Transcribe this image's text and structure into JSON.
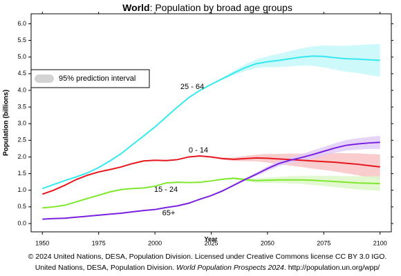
{
  "chart_data": {
    "type": "line",
    "title_bold": "World",
    "title": ": Population by broad age groups",
    "x_label": "Year",
    "y_label": "Population (billions)",
    "legend_label": "95% prediction interval",
    "legend_color": "#d3d3d3",
    "footer_line1": "© 2024 United Nations, DESA, Population Division. Licensed under Creative Commons license CC BY 3.0 IGO.",
    "footer_line2_start": "United Nations, DESA, Population Division. ",
    "footer_line2_italic": "World Population Prospects 2024",
    "footer_line2_end": ". http://population.un.org/wpp/",
    "xlim": [
      1945,
      2105
    ],
    "ylim": [
      -0.25,
      6.3
    ],
    "xticks": [
      1950,
      1975,
      2000,
      2025,
      2050,
      2075,
      2100
    ],
    "yticks": [
      {
        "value": 0,
        "label": "0.0"
      },
      {
        "value": 0.5,
        "label": "0.5"
      },
      {
        "value": 1,
        "label": "1.0"
      },
      {
        "value": 1.5,
        "label": "1.5"
      },
      {
        "value": 2,
        "label": "2.0"
      },
      {
        "value": 2.5,
        "label": "2.5"
      },
      {
        "value": 3,
        "label": "3.0"
      },
      {
        "value": 3.5,
        "label": "3.5"
      },
      {
        "value": 4,
        "label": "4.0"
      },
      {
        "value": 4.5,
        "label": "4.5"
      },
      {
        "value": 5,
        "label": "5.0"
      },
      {
        "value": 5.5,
        "label": "5.5"
      },
      {
        "value": 6,
        "label": "6.0"
      }
    ],
    "x": [
      1950,
      1955,
      1960,
      1965,
      1970,
      1975,
      1980,
      1985,
      1990,
      1995,
      2000,
      2005,
      2010,
      2015,
      2020,
      2025,
      2030,
      2035,
      2040,
      2045,
      2050,
      2055,
      2060,
      2065,
      2070,
      2075,
      2080,
      2085,
      2090,
      2095,
      2100
    ],
    "series": [
      {
        "name": "25 - 64",
        "color": "#33e8f0",
        "band_color": "#c4f8fa",
        "values": [
          1.05,
          1.17,
          1.29,
          1.4,
          1.52,
          1.68,
          1.88,
          2.1,
          2.37,
          2.63,
          2.9,
          3.2,
          3.5,
          3.78,
          4.0,
          4.18,
          4.35,
          4.52,
          4.68,
          4.8,
          4.86,
          4.9,
          4.95,
          5.0,
          5.03,
          5.02,
          4.98,
          4.95,
          4.94,
          4.92,
          4.9
        ],
        "lower": [
          null,
          null,
          null,
          null,
          null,
          null,
          null,
          null,
          null,
          null,
          null,
          null,
          null,
          null,
          null,
          4.18,
          4.32,
          4.45,
          4.58,
          4.67,
          4.7,
          4.7,
          4.72,
          4.74,
          4.74,
          4.69,
          4.62,
          4.56,
          4.52,
          4.46,
          4.41
        ],
        "upper": [
          null,
          null,
          null,
          null,
          null,
          null,
          null,
          null,
          null,
          null,
          null,
          null,
          null,
          null,
          null,
          4.18,
          4.38,
          4.59,
          4.78,
          4.93,
          5.02,
          5.1,
          5.18,
          5.26,
          5.32,
          5.35,
          5.34,
          5.34,
          5.36,
          5.38,
          5.39
        ]
      },
      {
        "name": "0 - 14",
        "color": "#e8141c",
        "band_color": "#f8c4c4",
        "values": [
          0.88,
          1.0,
          1.15,
          1.32,
          1.45,
          1.55,
          1.62,
          1.7,
          1.8,
          1.88,
          1.9,
          1.89,
          1.92,
          2.0,
          2.03,
          2.0,
          1.95,
          1.93,
          1.95,
          1.97,
          1.96,
          1.94,
          1.92,
          1.9,
          1.88,
          1.86,
          1.84,
          1.81,
          1.78,
          1.74,
          1.7
        ],
        "lower": [
          null,
          null,
          null,
          null,
          null,
          null,
          null,
          null,
          null,
          null,
          null,
          null,
          null,
          null,
          null,
          2.0,
          1.92,
          1.88,
          1.87,
          1.87,
          1.83,
          1.79,
          1.74,
          1.7,
          1.65,
          1.61,
          1.56,
          1.51,
          1.45,
          1.39,
          1.32
        ],
        "upper": [
          null,
          null,
          null,
          null,
          null,
          null,
          null,
          null,
          null,
          null,
          null,
          null,
          null,
          null,
          null,
          2.0,
          1.98,
          1.98,
          2.03,
          2.07,
          2.09,
          2.09,
          2.1,
          2.1,
          2.11,
          2.11,
          2.12,
          2.11,
          2.11,
          2.09,
          2.08
        ]
      },
      {
        "name": "15 - 24",
        "color": "#7ee82c",
        "band_color": "#ddf7c8",
        "values": [
          0.47,
          0.5,
          0.55,
          0.65,
          0.75,
          0.85,
          0.95,
          1.02,
          1.05,
          1.07,
          1.12,
          1.22,
          1.24,
          1.23,
          1.24,
          1.28,
          1.33,
          1.36,
          1.32,
          1.29,
          1.3,
          1.31,
          1.31,
          1.31,
          1.3,
          1.28,
          1.26,
          1.24,
          1.22,
          1.21,
          1.2
        ],
        "lower": [
          null,
          null,
          null,
          null,
          null,
          null,
          null,
          null,
          null,
          null,
          null,
          null,
          null,
          null,
          null,
          1.28,
          1.31,
          1.33,
          1.27,
          1.23,
          1.22,
          1.22,
          1.2,
          1.19,
          1.16,
          1.13,
          1.09,
          1.06,
          1.02,
          1.0,
          0.98
        ],
        "upper": [
          null,
          null,
          null,
          null,
          null,
          null,
          null,
          null,
          null,
          null,
          null,
          null,
          null,
          null,
          null,
          1.28,
          1.35,
          1.39,
          1.37,
          1.35,
          1.38,
          1.4,
          1.42,
          1.43,
          1.44,
          1.43,
          1.43,
          1.42,
          1.42,
          1.42,
          1.42
        ]
      },
      {
        "name": "65+",
        "color": "#7a1ee0",
        "band_color": "#e2cdf8",
        "values": [
          0.13,
          0.15,
          0.16,
          0.19,
          0.22,
          0.25,
          0.28,
          0.31,
          0.35,
          0.39,
          0.42,
          0.48,
          0.53,
          0.61,
          0.73,
          0.84,
          0.98,
          1.15,
          1.32,
          1.48,
          1.65,
          1.8,
          1.9,
          1.98,
          2.07,
          2.17,
          2.27,
          2.35,
          2.39,
          2.42,
          2.44
        ],
        "lower": [
          null,
          null,
          null,
          null,
          null,
          null,
          null,
          null,
          null,
          null,
          null,
          null,
          null,
          null,
          null,
          0.84,
          0.97,
          1.12,
          1.28,
          1.43,
          1.58,
          1.72,
          1.81,
          1.88,
          1.95,
          2.04,
          2.13,
          2.19,
          2.22,
          2.24,
          2.24
        ],
        "upper": [
          null,
          null,
          null,
          null,
          null,
          null,
          null,
          null,
          null,
          null,
          null,
          null,
          null,
          null,
          null,
          0.84,
          0.99,
          1.18,
          1.36,
          1.53,
          1.72,
          1.88,
          1.99,
          2.08,
          2.19,
          2.3,
          2.41,
          2.51,
          2.56,
          2.6,
          2.64
        ]
      }
    ]
  }
}
